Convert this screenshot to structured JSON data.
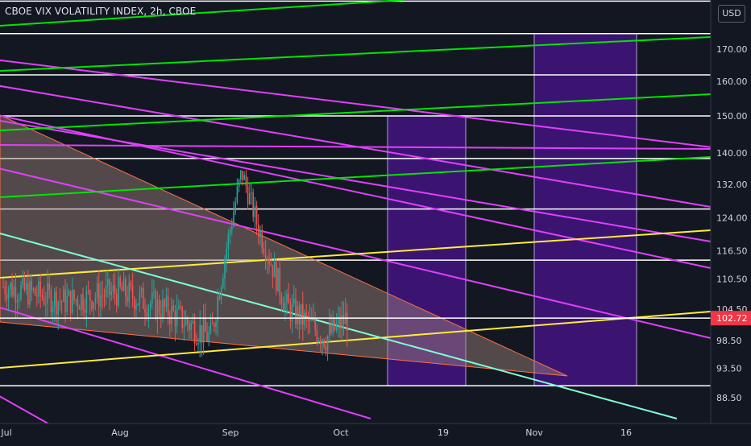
{
  "header": {
    "title": "CBOE VIX VOLATILITY INDEX, 2h, CBOE",
    "currency": "USD"
  },
  "colors": {
    "background": "#131722",
    "price_line": "#ff5252",
    "price_label_bg": "#f23645",
    "magenta": "#e040fb",
    "green": "#00e600",
    "yellow": "#ffeb3b",
    "teal": "#7fffd4",
    "wedge_fill": "#a1887f",
    "wedge_stroke": "#ff7043",
    "purple_zone": "#4a148c",
    "candle_up": "#26a69a",
    "candle_down": "#ef5350",
    "axis_text": "#d1d4dc"
  },
  "chart_data": {
    "type": "line",
    "title": "CBOE VIX VOLATILITY INDEX, 2h, CBOE",
    "symbol": "VIX",
    "interval": "2h",
    "exchange": "CBOE",
    "currency": "USD",
    "last_price": 102.72,
    "x_tick_labels": [
      "Jul",
      "Aug",
      "Sep",
      "Oct",
      "19",
      "Nov",
      "16"
    ],
    "y_tick_labels": [
      "170.00",
      "160.00",
      "150.00",
      "140.00",
      "132.00",
      "124.00",
      "116.50",
      "110.50",
      "104.50",
      "98.50",
      "93.50",
      "88.50"
    ],
    "price_label": "102.72",
    "scale": "log",
    "grid": false,
    "price_series_approx": [
      {
        "date": "Jul",
        "value": 109
      },
      {
        "date": "mid-Jul",
        "value": 106
      },
      {
        "date": "Aug",
        "value": 108
      },
      {
        "date": "mid-Aug",
        "value": 104
      },
      {
        "date": "late-Aug",
        "value": 99
      },
      {
        "date": "Sep",
        "value": 135
      },
      {
        "date": "early-Sep",
        "value": 122
      },
      {
        "date": "mid-Sep",
        "value": 105
      },
      {
        "date": "late-Sep",
        "value": 99
      },
      {
        "date": "Oct",
        "value": 102.72
      }
    ],
    "horizontal_levels": [
      186,
      175,
      162,
      150,
      138.5,
      126,
      114.5,
      102.72,
      90.5
    ],
    "purple_zones": [
      {
        "x_start": "early-Oct",
        "x_end": "late-Oct",
        "y_low": 90.5,
        "y_high": 150
      },
      {
        "x_start": "Nov",
        "x_end": "mid-Nov",
        "y_low": 90.5,
        "y_high": 175
      }
    ],
    "annotations": []
  }
}
